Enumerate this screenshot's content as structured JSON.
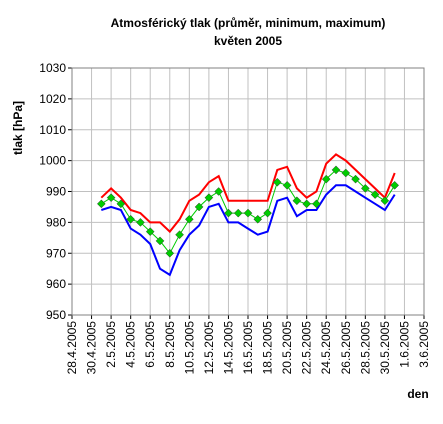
{
  "chart_data": {
    "type": "line",
    "title": "Atmosférický tlak (průměr, minimum, maximum)",
    "subtitle": "květen 2005",
    "y_label": "tlak [hPa]",
    "x_label": "den",
    "x": [
      "2005-05-01",
      "2005-05-02",
      "2005-05-03",
      "2005-05-04",
      "2005-05-05",
      "2005-05-06",
      "2005-05-07",
      "2005-05-08",
      "2005-05-09",
      "2005-05-10",
      "2005-05-11",
      "2005-05-12",
      "2005-05-13",
      "2005-05-14",
      "2005-05-15",
      "2005-05-16",
      "2005-05-17",
      "2005-05-18",
      "2005-05-19",
      "2005-05-20",
      "2005-05-21",
      "2005-05-22",
      "2005-05-23",
      "2005-05-24",
      "2005-05-25",
      "2005-05-26",
      "2005-05-27",
      "2005-05-28",
      "2005-05-29",
      "2005-05-30",
      "2005-05-31"
    ],
    "series": [
      {
        "color": "#ff0000",
        "values": [
          988,
          991,
          988,
          984,
          983,
          980,
          980,
          977,
          981,
          987,
          989,
          993,
          995,
          987,
          987,
          987,
          987,
          987,
          997,
          998,
          991,
          988,
          990,
          999,
          1002,
          1000,
          997,
          994,
          991,
          988,
          996
        ]
      },
      {
        "color": "#0000ff",
        "values": [
          984,
          985,
          984,
          978,
          976,
          973,
          965,
          963,
          971,
          976,
          979,
          985,
          986,
          980,
          980,
          978,
          976,
          977,
          987,
          988,
          982,
          984,
          984,
          989,
          992,
          992,
          990,
          988,
          986,
          984,
          989
        ]
      },
      {
        "color": "#00cc00",
        "marker": "diamond",
        "values": [
          986,
          988,
          986,
          981,
          980,
          977,
          974,
          970,
          976,
          981,
          985,
          988,
          990,
          983,
          983,
          983,
          981,
          983,
          993,
          992,
          987,
          986,
          986,
          994,
          997,
          996,
          994,
          991,
          989,
          987,
          992
        ]
      }
    ],
    "xlim": [
      "2005-04-28",
      "2005-06-03"
    ],
    "xticks": [
      {
        "value": "2005-04-28",
        "label": "28.4.2005"
      },
      {
        "value": "2005-04-30",
        "label": "30.4.2005"
      },
      {
        "value": "2005-05-02",
        "label": "2.5.2005"
      },
      {
        "value": "2005-05-04",
        "label": "4.5.2005"
      },
      {
        "value": "2005-05-06",
        "label": "6.5.2005"
      },
      {
        "value": "2005-05-08",
        "label": "8.5.2005"
      },
      {
        "value": "2005-05-10",
        "label": "10.5.2005"
      },
      {
        "value": "2005-05-12",
        "label": "12.5.2005"
      },
      {
        "value": "2005-05-14",
        "label": "14.5.2005"
      },
      {
        "value": "2005-05-16",
        "label": "16.5.2005"
      },
      {
        "value": "2005-05-18",
        "label": "18.5.2005"
      },
      {
        "value": "2005-05-20",
        "label": "20.5.2005"
      },
      {
        "value": "2005-05-22",
        "label": "22.5.2005"
      },
      {
        "value": "2005-05-24",
        "label": "24.5.2005"
      },
      {
        "value": "2005-05-26",
        "label": "26.5.2005"
      },
      {
        "value": "2005-05-28",
        "label": "28.5.2005"
      },
      {
        "value": "2005-05-30",
        "label": "30.5.2005"
      },
      {
        "value": "2005-06-01",
        "label": "1.6.2005"
      },
      {
        "value": "2005-06-03",
        "label": "3.6.2005"
      }
    ],
    "ylim": [
      950,
      1030
    ],
    "yticks": [
      950,
      960,
      970,
      980,
      990,
      1000,
      1010,
      1020,
      1030
    ],
    "grid": true
  }
}
